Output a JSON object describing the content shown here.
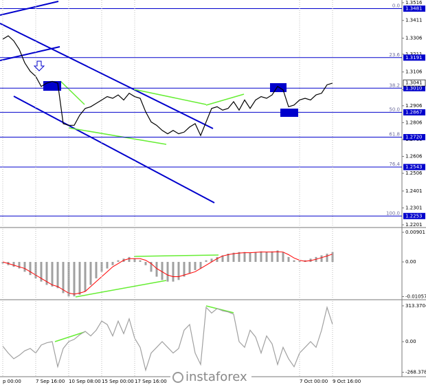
{
  "chart_data": [
    {
      "type": "line",
      "color": "#000000",
      "values": [
        1.33,
        1.332,
        1.329,
        1.324,
        1.316,
        1.311,
        1.308,
        1.302,
        1.304,
        1.305,
        1.304,
        1.28,
        1.279,
        1.279,
        1.285,
        1.289,
        1.29,
        1.292,
        1.294,
        1.296,
        1.295,
        1.297,
        1.294,
        1.298,
        1.296,
        1.295,
        1.287,
        1.281,
        1.279,
        1.276,
        1.274,
        1.276,
        1.274,
        1.275,
        1.278,
        1.28,
        1.273,
        1.281,
        1.289,
        1.29,
        1.288,
        1.289,
        1.293,
        1.288,
        1.294,
        1.289,
        1.294,
        1.296,
        1.295,
        1.297,
        1.302,
        1.3,
        1.29,
        1.291,
        1.294,
        1.295,
        1.294,
        1.297,
        1.298,
        1.303,
        1.304
      ],
      "ylim": [
        1.2189,
        1.3532
      ],
      "yticks": [
        1.3516,
        1.3411,
        1.3306,
        1.3211,
        1.3106,
        1.3001,
        1.2906,
        1.2806,
        1.2706,
        1.2606,
        1.2506,
        1.2401,
        1.2301,
        1.2201
      ],
      "fib_color": "#0000cc",
      "fib_levels": [
        {
          "label": "0.0",
          "value": 1.3481
        },
        {
          "label": "23.6",
          "value": 1.3191
        },
        {
          "label": "38.2",
          "value": 1.301,
          "value_label": "1.3010"
        },
        {
          "label": "50.0",
          "value": 1.2867
        },
        {
          "label": "61.8",
          "value": 1.272,
          "value_label": "1.2720"
        },
        {
          "label": "76.4",
          "value": 1.2543
        },
        {
          "label": "100.0",
          "value": 1.2253
        }
      ],
      "current_price": 1.3041
    },
    {
      "type": "bar",
      "color": "#a0a0a0",
      "values": [
        -0.0005,
        -0.001,
        -0.0015,
        -0.002,
        -0.003,
        -0.004,
        -0.005,
        -0.006,
        -0.007,
        -0.0075,
        -0.008,
        -0.0095,
        -0.0105,
        -0.0105,
        -0.01,
        -0.009,
        -0.007,
        -0.005,
        -0.003,
        -0.002,
        -0.001,
        0.0005,
        0.001,
        0.0015,
        0.001,
        0.0005,
        -0.001,
        -0.003,
        -0.0045,
        -0.0055,
        -0.006,
        -0.006,
        -0.0055,
        -0.0045,
        -0.0035,
        -0.0025,
        -0.002,
        0.0005,
        0.001,
        0.0015,
        0.002,
        0.0025,
        0.0028,
        0.003,
        0.003,
        0.0028,
        0.003,
        0.0032,
        0.003,
        0.0032,
        0.0035,
        0.003,
        0.0015,
        0.0005,
        0.0003,
        0.0005,
        0.001,
        0.0015,
        0.002,
        0.0025,
        0.003
      ],
      "signal": {
        "color": "#ff0000",
        "values": [
          0.0,
          -0.0005,
          -0.001,
          -0.0015,
          -0.002,
          -0.003,
          -0.004,
          -0.005,
          -0.006,
          -0.007,
          -0.0075,
          -0.0085,
          -0.0095,
          -0.0098,
          -0.0095,
          -0.009,
          -0.0075,
          -0.006,
          -0.0045,
          -0.003,
          -0.0015,
          -0.0005,
          0.0005,
          0.001,
          0.001,
          0.001,
          0.0005,
          -0.0005,
          -0.002,
          -0.003,
          -0.004,
          -0.0045,
          -0.0045,
          -0.004,
          -0.0035,
          -0.003,
          -0.002,
          -0.001,
          0.0,
          0.001,
          0.0018,
          0.0022,
          0.0025,
          0.0027,
          0.0028,
          0.0028,
          0.0029,
          0.003,
          0.003,
          0.003,
          0.0031,
          0.003,
          0.0022,
          0.0012,
          0.0005,
          0.0002,
          0.0004,
          0.0008,
          0.0013,
          0.0018,
          0.0024
        ]
      },
      "ylim": [
        -0.0113,
        0.01005
      ],
      "yticks": [
        0.00901,
        {
          "value": 0,
          "label": "0.00"
        },
        -0.01057
      ]
    },
    {
      "type": "line",
      "color": "#a0a0a0",
      "values": [
        -40,
        -100,
        -150,
        -120,
        -80,
        -60,
        -100,
        -30,
        -10,
        0,
        -220,
        -60,
        0,
        20,
        60,
        90,
        50,
        100,
        180,
        150,
        50,
        180,
        70,
        200,
        30,
        -50,
        -250,
        -100,
        -50,
        0,
        -50,
        -100,
        -60,
        100,
        150,
        -100,
        -200,
        300,
        250,
        290,
        270,
        260,
        240,
        0,
        -50,
        100,
        40,
        -100,
        50,
        -20,
        -200,
        -50,
        -150,
        -220,
        -100,
        -50,
        0,
        -50,
        100,
        300,
        150
      ],
      "ylim": [
        -307,
        355
      ],
      "yticks": [
        313.3704,
        {
          "value": 0,
          "label": "0.00"
        },
        -268.3786
      ],
      "categories": [
        "p 00:00",
        null,
        null,
        null,
        null,
        null,
        "7 Sep 16:00",
        null,
        null,
        null,
        null,
        null,
        "10 Sep 08:00",
        null,
        null,
        null,
        null,
        null,
        "15 Sep 00:00",
        null,
        null,
        null,
        null,
        null,
        "17 Sep 16:00",
        null,
        null,
        null,
        null,
        null,
        null,
        null,
        null,
        null,
        null,
        null,
        null,
        null,
        null,
        null,
        null,
        null,
        null,
        null,
        null,
        null,
        null,
        null,
        null,
        null,
        null,
        null,
        null,
        null,
        "7 Oct 00:00",
        null,
        null,
        null,
        null,
        null,
        "9 Oct 16:00"
      ]
    }
  ],
  "watermark": "instaforex"
}
